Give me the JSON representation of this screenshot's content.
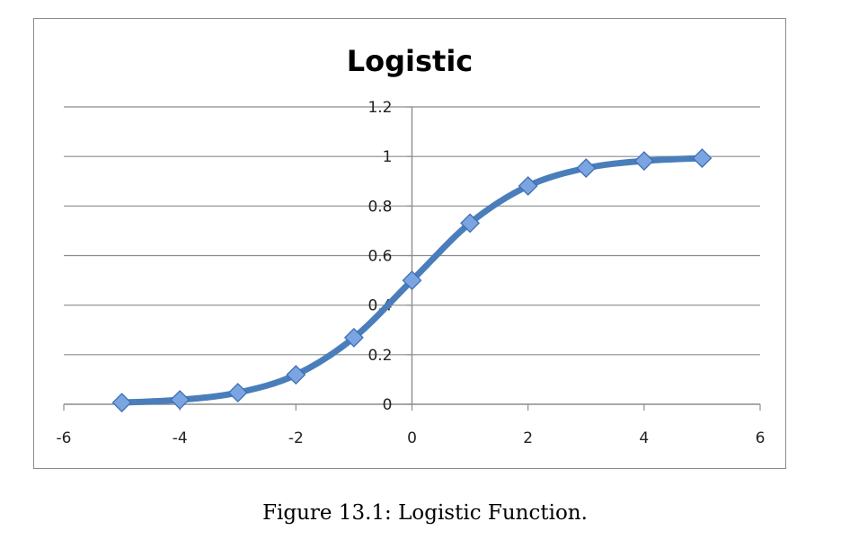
{
  "chart_data": {
    "type": "line",
    "title": "Logistic",
    "xlabel": "",
    "ylabel": "",
    "x": [
      -5,
      -4,
      -3,
      -2,
      -1,
      0,
      1,
      2,
      3,
      4,
      5
    ],
    "series": [
      {
        "name": "Logistic",
        "values": [
          0.0067,
          0.018,
          0.047,
          0.119,
          0.269,
          0.5,
          0.731,
          0.881,
          0.953,
          0.982,
          0.993
        ],
        "color": "#4a7ebb",
        "marker": "diamond",
        "marker_color": "#7aa5e0",
        "smooth": true
      }
    ],
    "xlim": [
      -6,
      6
    ],
    "ylim": [
      0,
      1.2
    ],
    "x_ticks": [
      -6,
      -4,
      -2,
      0,
      2,
      4,
      6
    ],
    "x_tick_labels": [
      "-6",
      "-4",
      "-2",
      "0",
      "2",
      "4",
      "6"
    ],
    "y_ticks": [
      0,
      0.2,
      0.4,
      0.6,
      0.8,
      1,
      1.2
    ],
    "y_tick_labels": [
      "0",
      "0.2",
      "0.4",
      "0.6",
      "0.8",
      "1",
      "1.2"
    ],
    "grid": true,
    "legend": "none"
  },
  "caption": "Figure 13.1: Logistic Function."
}
